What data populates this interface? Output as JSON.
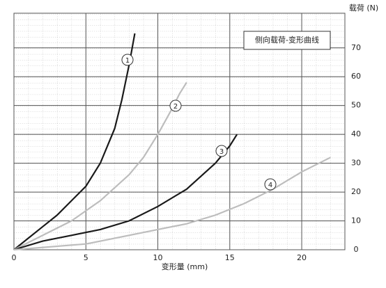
{
  "chart_data": {
    "type": "line",
    "title": "侧向载荷-变形曲线",
    "x_label": "变形量 (mm)",
    "y_label": "载荷 (N)",
    "xlim": [
      0,
      23
    ],
    "ylim": [
      0,
      82
    ],
    "xticks": [
      0,
      5,
      10,
      15,
      20
    ],
    "yticks": [
      0,
      10,
      20,
      30,
      40,
      50,
      60,
      70
    ],
    "grid": true,
    "series": [
      {
        "name": "1",
        "color": "#1a1a1a",
        "x": [
          0,
          1,
          2,
          3,
          4,
          5,
          6,
          7,
          7.5,
          8,
          8.4
        ],
        "values": [
          0,
          4,
          8,
          12,
          17,
          22,
          30,
          42,
          52,
          64,
          75
        ]
      },
      {
        "name": "2",
        "color": "#bdbdbd",
        "x": [
          0,
          2,
          4,
          6,
          8,
          9,
          10,
          11,
          11.5,
          12
        ],
        "values": [
          0,
          5,
          10,
          17,
          26,
          32,
          40,
          49,
          54,
          58
        ]
      },
      {
        "name": "3",
        "color": "#1a1a1a",
        "x": [
          0,
          2,
          4,
          6,
          8,
          10,
          12,
          14,
          15,
          15.5
        ],
        "values": [
          0,
          3,
          5,
          7,
          10,
          15,
          21,
          30,
          36,
          40
        ]
      },
      {
        "name": "4",
        "color": "#bdbdbd",
        "x": [
          0,
          5,
          8,
          10,
          12,
          14,
          16,
          18,
          20,
          22
        ],
        "values": [
          0,
          2,
          5,
          7,
          9,
          12,
          16,
          21,
          27,
          32
        ]
      }
    ]
  }
}
